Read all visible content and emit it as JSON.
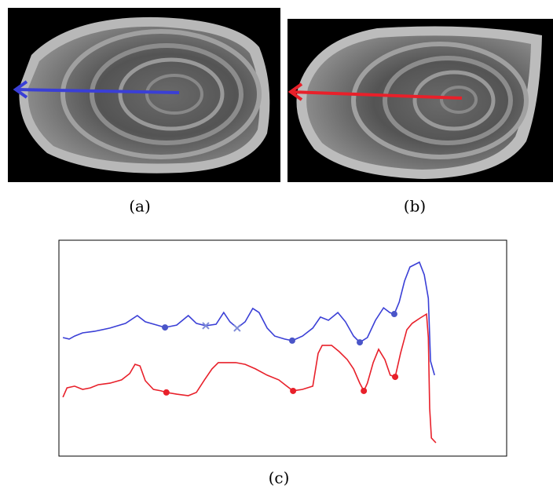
{
  "figure": {
    "captions": [
      "(a)",
      "(b)",
      "(c)"
    ]
  },
  "chart_data": {
    "type": "line",
    "xlim": [
      0,
      100
    ],
    "ylim": [
      0,
      100
    ],
    "series": [
      {
        "color": "#3a3fd6",
        "x": [
          0.9,
          2.3,
          3.5,
          5.3,
          7.9,
          11.4,
          14.9,
          17.5,
          19.3,
          21.9,
          23.7,
          26.3,
          28.9,
          30.7,
          32.8,
          35.1,
          36.8,
          38.2,
          39.8,
          41.6,
          43.3,
          44.7,
          46.5,
          48.2,
          50.4,
          52.1,
          54.4,
          56.7,
          58.4,
          60.2,
          62.3,
          64.0,
          65.8,
          67.2,
          68.9,
          70.7,
          72.5,
          73.9,
          74.9,
          76.0,
          77.2,
          78.4,
          80.5,
          81.6,
          82.5,
          83.0,
          83.9
        ],
        "values": [
          54.9,
          54.2,
          55.6,
          57.1,
          57.8,
          59.3,
          61.5,
          65.1,
          62.2,
          60.7,
          59.6,
          60.7,
          65.1,
          61.5,
          60.4,
          61.1,
          66.5,
          62.2,
          59.3,
          62.2,
          68.4,
          66.5,
          59.3,
          55.6,
          54.2,
          53.5,
          55.6,
          59.3,
          64.4,
          62.9,
          66.5,
          62.2,
          55.6,
          52.7,
          54.9,
          62.9,
          68.7,
          66.5,
          65.8,
          71.3,
          81.1,
          87.6,
          89.8,
          84.0,
          73.1,
          44.0,
          37.5
        ]
      },
      {
        "color": "#e8202a",
        "x": [
          0.9,
          1.8,
          3.5,
          5.3,
          7.0,
          8.8,
          11.4,
          14.0,
          15.8,
          17.0,
          18.1,
          19.3,
          21.1,
          22.8,
          24.0,
          26.3,
          28.9,
          30.7,
          32.5,
          34.2,
          35.6,
          39.5,
          41.6,
          43.9,
          46.5,
          49.1,
          50.9,
          52.3,
          54.4,
          56.7,
          57.9,
          58.8,
          60.9,
          62.6,
          64.4,
          65.8,
          67.2,
          68.1,
          68.9,
          70.2,
          71.4,
          72.8,
          74.0,
          75.1,
          76.3,
          77.7,
          78.9,
          80.7,
          82.1,
          82.5,
          82.8,
          83.2,
          84.2
        ],
        "values": [
          27.3,
          31.6,
          32.4,
          30.9,
          31.6,
          33.1,
          33.8,
          35.3,
          38.2,
          42.5,
          41.8,
          34.9,
          30.9,
          30.2,
          29.5,
          28.7,
          28.0,
          29.5,
          35.3,
          40.4,
          43.3,
          43.3,
          42.5,
          40.4,
          37.5,
          35.3,
          32.4,
          30.2,
          30.9,
          32.4,
          47.6,
          51.3,
          51.3,
          48.4,
          44.7,
          40.4,
          33.8,
          30.2,
          33.8,
          43.3,
          49.5,
          44.7,
          37.5,
          36.7,
          47.6,
          58.5,
          61.5,
          64.0,
          65.8,
          54.9,
          22.2,
          8.4,
          6.2
        ]
      }
    ],
    "markers": [
      {
        "marker": "circle",
        "color": "#4a55c8",
        "x": [
          23.7,
          52.1,
          67.2,
          74.9
        ],
        "values": [
          59.6,
          53.5,
          52.7,
          65.8
        ]
      },
      {
        "marker": "cross",
        "color": "#7f8bd8",
        "x": [
          32.8,
          39.8
        ],
        "values": [
          60.4,
          59.3
        ]
      },
      {
        "marker": "circle",
        "color": "#e8202a",
        "x": [
          24.0,
          52.3,
          68.1,
          75.1
        ],
        "values": [
          29.5,
          30.2,
          30.2,
          36.7
        ]
      }
    ]
  }
}
